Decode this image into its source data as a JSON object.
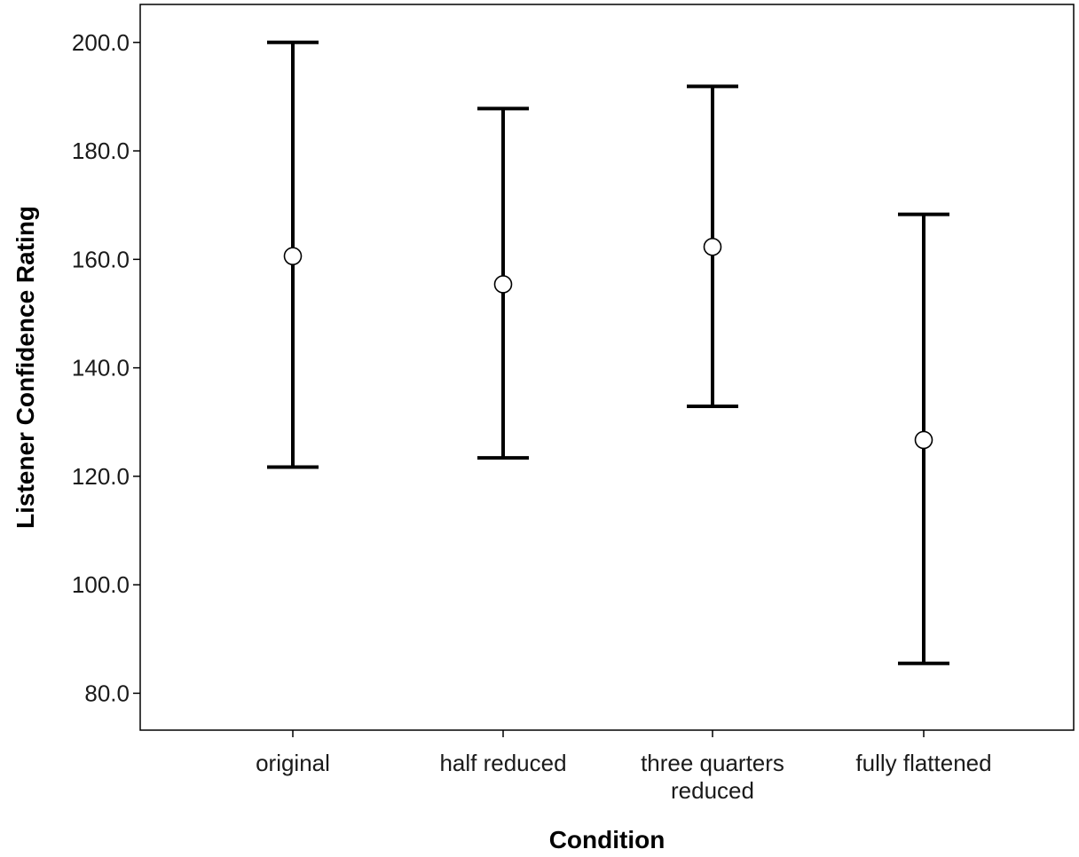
{
  "chart_data": {
    "type": "errorbar",
    "xlabel": "Condition",
    "ylabel": "Listener Confidence Rating",
    "ylim": [
      73.2,
      207
    ],
    "yticks": [
      80,
      100,
      120,
      140,
      160,
      180,
      200
    ],
    "ytick_labels": [
      "80.0",
      "100.0",
      "120.0",
      "140.0",
      "160.0",
      "180.0",
      "200.0"
    ],
    "categories": [
      [
        "original"
      ],
      [
        "half reduced"
      ],
      [
        "three quarters",
        "reduced"
      ],
      [
        "fully flattened"
      ]
    ],
    "means": [
      160.6,
      155.4,
      162.3,
      126.7
    ],
    "upper": [
      200.0,
      187.8,
      191.9,
      168.3
    ],
    "lower": [
      121.7,
      123.4,
      132.9,
      85.5
    ],
    "grid": false,
    "colors": {
      "errorbar": "#000000",
      "marker": "#000000",
      "frame": "#000000"
    }
  }
}
